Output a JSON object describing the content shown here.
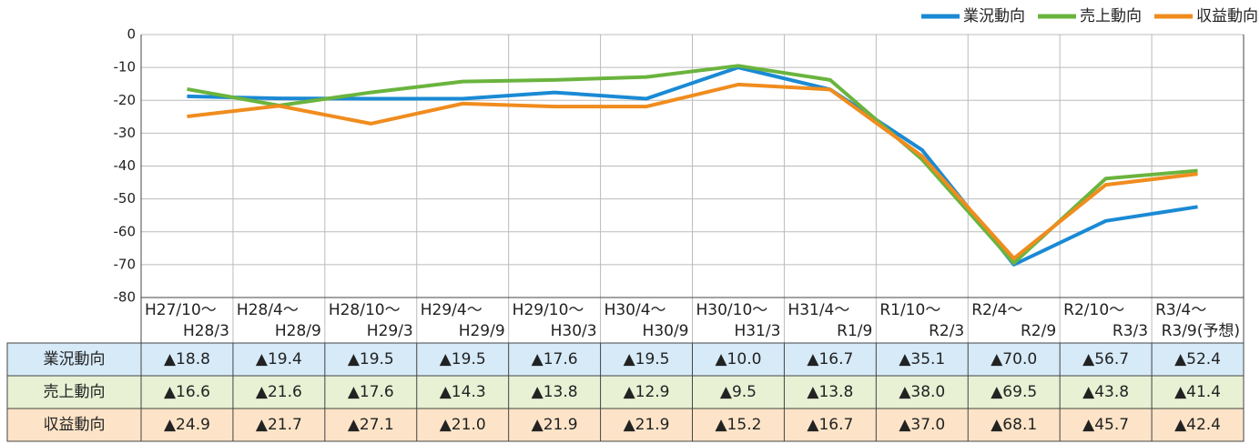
{
  "chart_data": {
    "type": "line",
    "categories": [
      [
        "H27/10～",
        "H28/3"
      ],
      [
        "H28/4～",
        "H28/9"
      ],
      [
        "H28/10～",
        "H29/3"
      ],
      [
        "H29/4～",
        "H29/9"
      ],
      [
        "H29/10～",
        "H30/3"
      ],
      [
        "H30/4～",
        "H30/9"
      ],
      [
        "H30/10～",
        "H31/3"
      ],
      [
        "H31/4～",
        "R1/9"
      ],
      [
        "R1/10～",
        "R2/3"
      ],
      [
        "R2/4～",
        "R2/9"
      ],
      [
        "R2/10～",
        "R3/3"
      ],
      [
        "R3/4～",
        "R3/9(予想)"
      ]
    ],
    "series": [
      {
        "name": "業況動向",
        "color": "#1a8ad4",
        "row_color": "#d6eaf8",
        "values": [
          -18.8,
          -19.4,
          -19.5,
          -19.5,
          -17.6,
          -19.5,
          -10.0,
          -16.7,
          -35.1,
          -70.0,
          -56.7,
          -52.4
        ],
        "value_labels": [
          "▲18.8",
          "▲19.4",
          "▲19.5",
          "▲19.5",
          "▲17.6",
          "▲19.5",
          "▲10.0",
          "▲16.7",
          "▲35.1",
          "▲70.0",
          "▲56.7",
          "▲52.4"
        ]
      },
      {
        "name": "売上動向",
        "color": "#6ab43e",
        "row_color": "#e8f1d4",
        "values": [
          -16.6,
          -21.6,
          -17.6,
          -14.3,
          -13.8,
          -12.9,
          -9.5,
          -13.8,
          -38.0,
          -69.5,
          -43.8,
          -41.4
        ],
        "value_labels": [
          "▲16.6",
          "▲21.6",
          "▲17.6",
          "▲14.3",
          "▲13.8",
          "▲12.9",
          "▲9.5",
          "▲13.8",
          "▲38.0",
          "▲69.5",
          "▲43.8",
          "▲41.4"
        ]
      },
      {
        "name": "収益動向",
        "color": "#f08c1e",
        "row_color": "#fde4c8",
        "values": [
          -24.9,
          -21.7,
          -27.1,
          -21.0,
          -21.9,
          -21.9,
          -15.2,
          -16.7,
          -37.0,
          -68.1,
          -45.7,
          -42.4
        ],
        "value_labels": [
          "▲24.9",
          "▲21.7",
          "▲27.1",
          "▲21.0",
          "▲21.9",
          "▲21.9",
          "▲15.2",
          "▲16.7",
          "▲37.0",
          "▲68.1",
          "▲45.7",
          "▲42.4"
        ]
      }
    ],
    "ylim": [
      -80,
      0
    ],
    "yticks": [
      0,
      -10,
      -20,
      -30,
      -40,
      -50,
      -60,
      -70,
      -80
    ],
    "grid": true,
    "legend": "top-right"
  }
}
